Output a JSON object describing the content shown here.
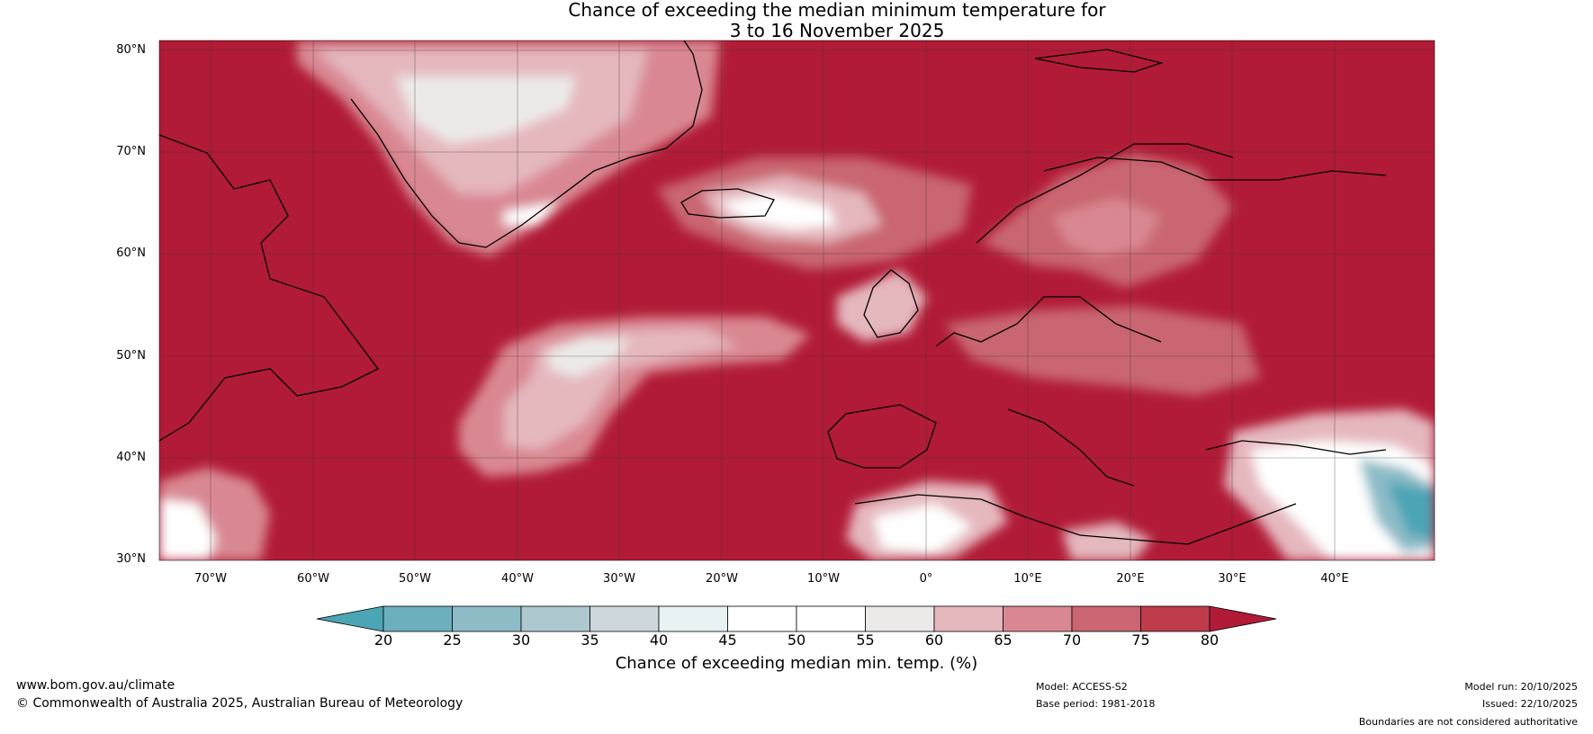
{
  "title": {
    "line1": "Chance of exceeding the median minimum temperature for",
    "line2": "3 to 16 November 2025"
  },
  "map": {
    "lat_labels": [
      "80°N",
      "70°N",
      "60°N",
      "50°N",
      "40°N",
      "30°N"
    ],
    "lon_labels": [
      "70°W",
      "60°W",
      "50°W",
      "40°W",
      "30°W",
      "20°W",
      "10°W",
      "0°",
      "10°E",
      "20°E",
      "30°E",
      "40°E"
    ],
    "colors": {
      "background_high": "#b11b37",
      "land_outline": "#000000",
      "border": "#808080",
      "grid": "#333333"
    }
  },
  "colorbar": {
    "ticks": [
      "20",
      "25",
      "30",
      "35",
      "40",
      "45",
      "50",
      "55",
      "60",
      "65",
      "70",
      "75",
      "80"
    ],
    "colors": [
      "#4ca5b5",
      "#6db0bd",
      "#8dbcc7",
      "#adc8cf",
      "#cfd8dc",
      "#e8f1f3",
      "#ffffff",
      "#ffffff",
      "#eceae8",
      "#e5b8be",
      "#d98893",
      "#c96671",
      "#bf3c4c",
      "#b11b37"
    ],
    "label": "Chance of exceeding median min. temp. (%)"
  },
  "footer": {
    "website": "www.bom.gov.au/climate",
    "copyright": "© Commonwealth of Australia 2025, Australian Bureau of Meteorology",
    "model": "Model: ACCESS-S2",
    "base_period": "Base period: 1981-2018",
    "model_run": "Model run: 20/10/2025",
    "issued": "Issued: 22/10/2025",
    "boundaries": "Boundaries are not considered authoritative"
  }
}
